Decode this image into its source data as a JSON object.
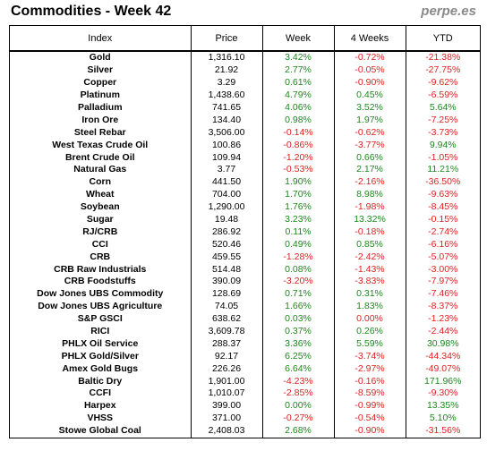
{
  "header": {
    "title": "Commodities - Week 42",
    "brand": "perpe.es"
  },
  "columns": [
    "Index",
    "Price",
    "Week",
    "4 Weeks",
    "YTD"
  ],
  "colors": {
    "positive": "#1a8a1a",
    "negative": "#e02020"
  },
  "rows": [
    [
      "Gold",
      "1,316.10",
      "3.42%",
      "-0.72%",
      "-21.38%"
    ],
    [
      "Silver",
      "21.92",
      "2.77%",
      "-0.05%",
      "-27.75%"
    ],
    [
      "Copper",
      "3.29",
      "0.61%",
      "-0.90%",
      "-9.62%"
    ],
    [
      "Platinum",
      "1,438.60",
      "4.79%",
      "0.45%",
      "-6.59%"
    ],
    [
      "Palladium",
      "741.65",
      "4.06%",
      "3.52%",
      "5.64%"
    ],
    [
      "Iron Ore",
      "134.40",
      "0.98%",
      "1.97%",
      "-7.25%"
    ],
    [
      "Steel Rebar",
      "3,506.00",
      "-0.14%",
      "-0.62%",
      "-3.73%"
    ],
    [
      "West Texas Crude Oil",
      "100.86",
      "-0.86%",
      "-3.77%",
      "9.94%"
    ],
    [
      "Brent Crude Oil",
      "109.94",
      "-1.20%",
      "0.66%",
      "-1.05%"
    ],
    [
      "Natural Gas",
      "3.77",
      "-0.53%",
      "2.17%",
      "11.21%"
    ],
    [
      "Corn",
      "441.50",
      "1.90%",
      "-2.16%",
      "-36.50%"
    ],
    [
      "Wheat",
      "704.00",
      "1.70%",
      "8.98%",
      "-9.63%"
    ],
    [
      "Soybean",
      "1,290.00",
      "1.76%",
      "-1.98%",
      "-8.45%"
    ],
    [
      "Sugar",
      "19.48",
      "3.23%",
      "13.32%",
      "-0.15%"
    ],
    [
      "RJ/CRB",
      "286.92",
      "0.11%",
      "-0.18%",
      "-2.74%"
    ],
    [
      "CCI",
      "520.46",
      "0.49%",
      "0.85%",
      "-6.16%"
    ],
    [
      "CRB",
      "459.55",
      "-1.28%",
      "-2.42%",
      "-5.07%"
    ],
    [
      "CRB Raw Industrials",
      "514.48",
      "0.08%",
      "-1.43%",
      "-3.00%"
    ],
    [
      "CRB Foodstuffs",
      "390.09",
      "-3.20%",
      "-3.83%",
      "-7.97%"
    ],
    [
      "Dow Jones UBS Commodity",
      "128.69",
      "0.71%",
      "0.31%",
      "-7.46%"
    ],
    [
      "Dow Jones UBS Agriculture",
      "74.05",
      "1.66%",
      "1.83%",
      "-8.37%"
    ],
    [
      "S&P GSCI",
      "638.62",
      "0.03%",
      "0.00%",
      "-1.23%"
    ],
    [
      "RICI",
      "3,609.78",
      "0.37%",
      "0.26%",
      "-2.44%"
    ],
    [
      "PHLX Oil Service",
      "288.37",
      "3.36%",
      "5.59%",
      "30.98%"
    ],
    [
      "PHLX Gold/Silver",
      "92.17",
      "6.25%",
      "-3.74%",
      "-44.34%"
    ],
    [
      "Amex Gold Bugs",
      "226.26",
      "6.64%",
      "-2.97%",
      "-49.07%"
    ],
    [
      "Baltic Dry",
      "1,901.00",
      "-4.23%",
      "-0.16%",
      "171.96%"
    ],
    [
      "CCFI",
      "1,010.07",
      "-2.85%",
      "-8.59%",
      "-9.30%"
    ],
    [
      "Harpex",
      "399.00",
      "0.00%",
      "-0.99%",
      "13.35%"
    ],
    [
      "VHSS",
      "371.00",
      "-0.27%",
      "-0.54%",
      "5.10%"
    ],
    [
      "Stowe Global Coal",
      "2,408.03",
      "2.68%",
      "-0.90%",
      "-31.56%"
    ]
  ]
}
